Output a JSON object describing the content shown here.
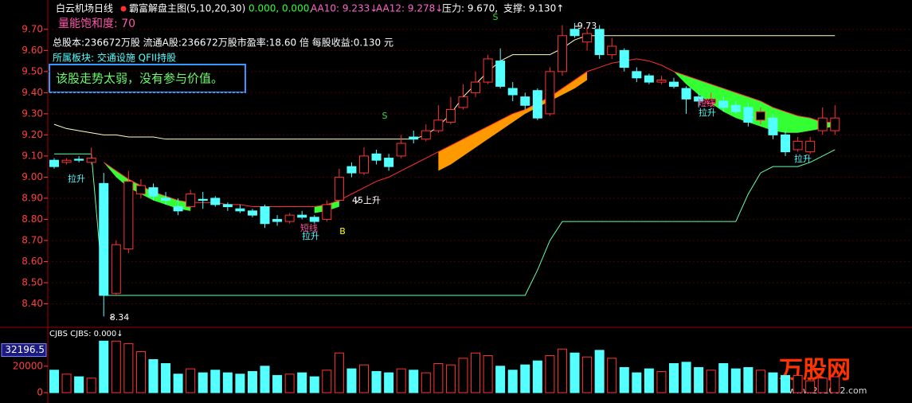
{
  "header": {
    "stock": "白云机场日线",
    "indicator": "霸富解盘主图(5,10,20,30)",
    "values_text": "0.000, 0.000,",
    "aa10": "AA10: 9.233↓",
    "aa12": "AA12: 9.278↓",
    "pressure": "压力: 9.670,",
    "support": "支撑: 9.130↑",
    "saturation": "量能饱和度: 70",
    "info": "总股本:236672万股 流通A股:236672万股市盈率:18.60 倍 每股收益:0.130 元",
    "sector": "所属板块: 交通设施 QFII持股",
    "verdict": "该股走势太弱，没有参与价值。"
  },
  "watermark": {
    "title": "万股网",
    "url": "www.201082.com"
  },
  "chart_data": [
    {
      "type": "candlestick",
      "up_color": "#ff3232",
      "down_color": "#54ffff",
      "open": [
        9.08,
        9.07,
        9.085,
        9.07,
        8.97,
        8.45,
        8.66,
        8.92,
        8.95,
        8.9,
        8.86,
        8.86,
        8.895,
        8.9,
        8.87,
        8.85,
        8.84,
        8.86,
        8.8,
        8.79,
        8.82,
        8.81,
        8.8,
        8.89,
        9.05,
        9.02,
        9.11,
        9.09,
        9.1,
        9.19,
        9.18,
        9.22,
        9.26,
        9.33,
        9.4,
        9.45,
        9.55,
        9.42,
        9.38,
        9.41,
        9.3,
        9.5,
        9.7,
        9.64,
        9.7,
        9.58,
        9.6,
        9.5,
        9.48,
        9.45,
        9.45,
        9.42,
        9.38,
        9.35,
        9.36,
        9.34,
        9.33,
        9.27,
        9.28,
        9.2,
        9.13,
        9.12,
        9.22,
        9.22
      ],
      "high": [
        9.09,
        9.09,
        9.1,
        9.14,
        9.02,
        8.7,
        9.03,
        8.99,
        8.97,
        8.93,
        8.9,
        8.94,
        8.93,
        8.91,
        8.88,
        8.87,
        8.85,
        8.87,
        8.82,
        8.83,
        8.84,
        8.82,
        8.89,
        9.04,
        9.07,
        9.14,
        9.13,
        9.11,
        9.2,
        9.22,
        9.25,
        9.34,
        9.38,
        9.44,
        9.5,
        9.58,
        9.61,
        9.45,
        9.4,
        9.42,
        9.52,
        9.72,
        9.73,
        9.71,
        9.72,
        9.66,
        9.61,
        9.52,
        9.49,
        9.48,
        9.47,
        9.43,
        9.4,
        9.4,
        9.38,
        9.36,
        9.35,
        9.33,
        9.3,
        9.22,
        9.19,
        9.19,
        9.33,
        9.34
      ],
      "low": [
        9.04,
        9.06,
        9.07,
        9.06,
        8.34,
        8.44,
        8.64,
        8.9,
        8.89,
        8.87,
        8.82,
        8.85,
        8.85,
        8.86,
        8.84,
        8.83,
        8.81,
        8.76,
        8.77,
        8.78,
        8.8,
        8.78,
        8.79,
        8.88,
        9.0,
        9.01,
        9.06,
        9.03,
        9.09,
        9.16,
        9.17,
        9.21,
        9.25,
        9.32,
        9.38,
        9.44,
        9.42,
        9.36,
        9.32,
        9.27,
        9.29,
        9.48,
        9.66,
        9.6,
        9.56,
        9.56,
        9.5,
        9.45,
        9.44,
        9.44,
        9.42,
        9.3,
        9.33,
        9.33,
        9.31,
        9.3,
        9.24,
        9.25,
        9.18,
        9.1,
        9.12,
        9.11,
        9.2,
        9.2
      ],
      "close": [
        9.05,
        9.08,
        9.08,
        9.09,
        8.44,
        8.68,
        8.98,
        8.96,
        8.91,
        8.89,
        8.84,
        8.92,
        8.89,
        8.87,
        8.86,
        8.84,
        8.82,
        8.78,
        8.79,
        8.82,
        8.81,
        8.79,
        8.87,
        9.0,
        9.02,
        9.1,
        9.08,
        9.05,
        9.16,
        9.18,
        9.22,
        9.27,
        9.32,
        9.38,
        9.45,
        9.56,
        9.43,
        9.39,
        9.34,
        9.28,
        9.5,
        9.67,
        9.67,
        9.68,
        9.58,
        9.62,
        9.52,
        9.47,
        9.45,
        9.46,
        9.43,
        9.37,
        9.36,
        9.37,
        9.33,
        9.31,
        9.26,
        9.31,
        9.2,
        9.12,
        9.17,
        9.17,
        9.28,
        9.28
      ],
      "lines": [
        {
          "color": "#ff3030",
          "values": [
            null,
            null,
            null,
            null,
            9.07,
            9.03,
            8.99,
            8.96,
            8.93,
            8.91,
            8.89,
            8.88,
            8.88,
            8.88,
            8.87,
            8.87,
            8.86,
            8.86,
            8.86,
            8.86,
            8.86,
            8.86,
            8.87,
            8.89,
            8.92,
            8.95,
            8.98,
            9.0,
            9.03,
            9.06,
            9.09,
            9.12,
            9.15,
            9.18,
            9.21,
            9.24,
            9.27,
            9.3,
            9.32,
            9.35,
            9.38,
            9.42,
            9.46,
            9.5,
            9.52,
            9.54,
            9.55,
            9.56,
            9.55,
            9.53,
            9.5,
            9.48,
            9.46,
            9.44,
            9.42,
            9.4,
            9.38,
            9.36,
            9.33,
            9.31,
            9.29,
            9.28,
            9.26,
            9.26
          ]
        },
        {
          "color": "#ffffc0",
          "values": [
            9.25,
            9.23,
            9.22,
            9.21,
            9.2,
            9.2,
            9.19,
            9.19,
            9.19,
            9.18,
            9.18,
            9.18,
            9.18,
            9.18,
            9.18,
            9.18,
            9.18,
            9.18,
            9.18,
            9.18,
            9.18,
            9.18,
            9.18,
            9.18,
            9.18,
            9.18,
            9.18,
            9.18,
            9.18,
            9.18,
            9.2,
            9.24,
            9.3,
            9.38,
            9.44,
            9.5,
            9.55,
            9.58,
            9.58,
            9.58,
            9.58,
            9.61,
            9.65,
            9.67,
            9.67,
            9.67,
            9.67,
            9.67,
            9.67,
            9.67,
            9.67,
            9.67,
            9.67,
            9.67,
            9.67,
            9.67,
            9.67,
            9.67,
            9.67,
            9.67,
            9.67,
            9.67,
            9.67,
            9.67
          ]
        },
        {
          "color": "#66ffaa",
          "values": [
            9.11,
            9.11,
            9.11,
            9.11,
            8.44,
            8.44,
            8.44,
            8.44,
            8.44,
            8.44,
            8.44,
            8.44,
            8.44,
            8.44,
            8.44,
            8.44,
            8.44,
            8.44,
            8.44,
            8.44,
            8.44,
            8.44,
            8.44,
            8.44,
            8.44,
            8.44,
            8.44,
            8.44,
            8.44,
            8.44,
            8.44,
            8.44,
            8.44,
            8.44,
            8.44,
            8.44,
            8.44,
            8.44,
            8.44,
            8.56,
            8.7,
            8.79,
            8.79,
            8.79,
            8.79,
            8.79,
            8.79,
            8.79,
            8.79,
            8.79,
            8.79,
            8.79,
            8.79,
            8.79,
            8.79,
            8.79,
            8.92,
            9.02,
            9.05,
            9.05,
            9.05,
            9.07,
            9.1,
            9.13
          ]
        }
      ],
      "bands": [
        {
          "color": "#33ff33",
          "values": [
            null,
            null,
            null,
            null,
            9.07,
            9.0,
            8.95,
            8.92,
            8.89,
            8.87,
            8.85,
            8.84,
            null,
            null,
            null,
            null,
            null,
            null,
            null,
            null,
            null,
            8.83,
            8.84,
            8.86,
            null,
            null,
            null,
            null,
            null,
            null,
            null,
            null,
            null,
            null,
            null,
            null,
            null,
            null,
            null,
            null,
            null,
            null,
            null,
            null,
            null,
            null,
            null,
            null,
            null,
            null,
            9.5,
            9.44,
            9.39,
            9.35,
            9.31,
            9.28,
            9.26,
            9.24,
            9.22,
            9.21,
            9.21,
            9.22,
            9.23,
            9.24
          ]
        },
        {
          "color": "#ff9900",
          "values": [
            null,
            null,
            null,
            null,
            null,
            null,
            null,
            null,
            null,
            null,
            null,
            null,
            null,
            null,
            null,
            null,
            null,
            null,
            null,
            null,
            null,
            null,
            null,
            null,
            null,
            null,
            null,
            null,
            null,
            null,
            null,
            9.03,
            9.06,
            9.1,
            9.14,
            9.18,
            9.22,
            9.26,
            9.3,
            9.33,
            9.36,
            9.39,
            9.42,
            9.46,
            null,
            null,
            null,
            null,
            null,
            null,
            null,
            null,
            null,
            null,
            null,
            null,
            null,
            null,
            null,
            null,
            null,
            null,
            null,
            null
          ]
        }
      ],
      "ylim": [
        8.3,
        9.82
      ],
      "yticks": [
        {
          "value": 8.4,
          "label": "8.40"
        },
        {
          "value": 8.5,
          "label": "8.50"
        },
        {
          "value": 8.6,
          "label": "8.60"
        },
        {
          "value": 8.7,
          "label": "8.70"
        },
        {
          "value": 8.8,
          "label": "8.80"
        },
        {
          "value": 8.9,
          "label": "8.90"
        },
        {
          "value": 9.0,
          "label": "9.00"
        },
        {
          "value": 9.1,
          "label": "9.10"
        },
        {
          "value": 9.2,
          "label": "9.20"
        },
        {
          "value": 9.3,
          "label": "9.30"
        },
        {
          "value": 9.4,
          "label": "9.40"
        },
        {
          "value": 9.5,
          "label": "9.50"
        },
        {
          "value": 9.6,
          "label": "9.60"
        },
        {
          "value": 9.7,
          "label": "9.70"
        }
      ],
      "grid": true,
      "annotations": [
        {
          "text": "9.73",
          "color": "#ffffff"
        },
        {
          "text": "8.34",
          "color": "#ffffff"
        },
        {
          "text": "拉升",
          "color": "#54ffff"
        },
        {
          "text": "短线",
          "color": "#ff4fa0"
        },
        {
          "text": "拉升",
          "color": "#54ffff"
        },
        {
          "text": "45上升",
          "color": "#ffffff"
        },
        {
          "text": "B",
          "color": "#ffff00"
        },
        {
          "text": "S",
          "color": "#33dd33"
        },
        {
          "text": "S",
          "color": "#33dd33"
        },
        {
          "text": "短线",
          "color": "#ff4fa0"
        },
        {
          "text": "拉升",
          "color": "#54ffff"
        },
        {
          "text": "拉升",
          "color": "#54ffff"
        }
      ]
    },
    {
      "type": "bar",
      "title": "CJBS CJBS: 0.000↓",
      "values": [
        17000,
        14000,
        12000,
        11000,
        39000,
        39000,
        37000,
        31000,
        25000,
        22000,
        14000,
        18000,
        15000,
        17000,
        15000,
        14000,
        16000,
        20000,
        13000,
        14000,
        15000,
        12000,
        17000,
        30000,
        18000,
        21000,
        16000,
        15000,
        18000,
        17000,
        15000,
        22000,
        21000,
        26000,
        30000,
        28000,
        20000,
        17000,
        21000,
        24000,
        28000,
        33000,
        30000,
        27000,
        32000,
        26000,
        19000,
        15000,
        18000,
        16000,
        22000,
        23000,
        19000,
        17000,
        22000,
        18000,
        19000,
        17000,
        15000,
        13000,
        13000,
        9000,
        11000,
        12000
      ],
      "ylim": [
        0,
        47000
      ],
      "yticks": [
        0,
        20000
      ],
      "current_value": 32196.5
    }
  ]
}
